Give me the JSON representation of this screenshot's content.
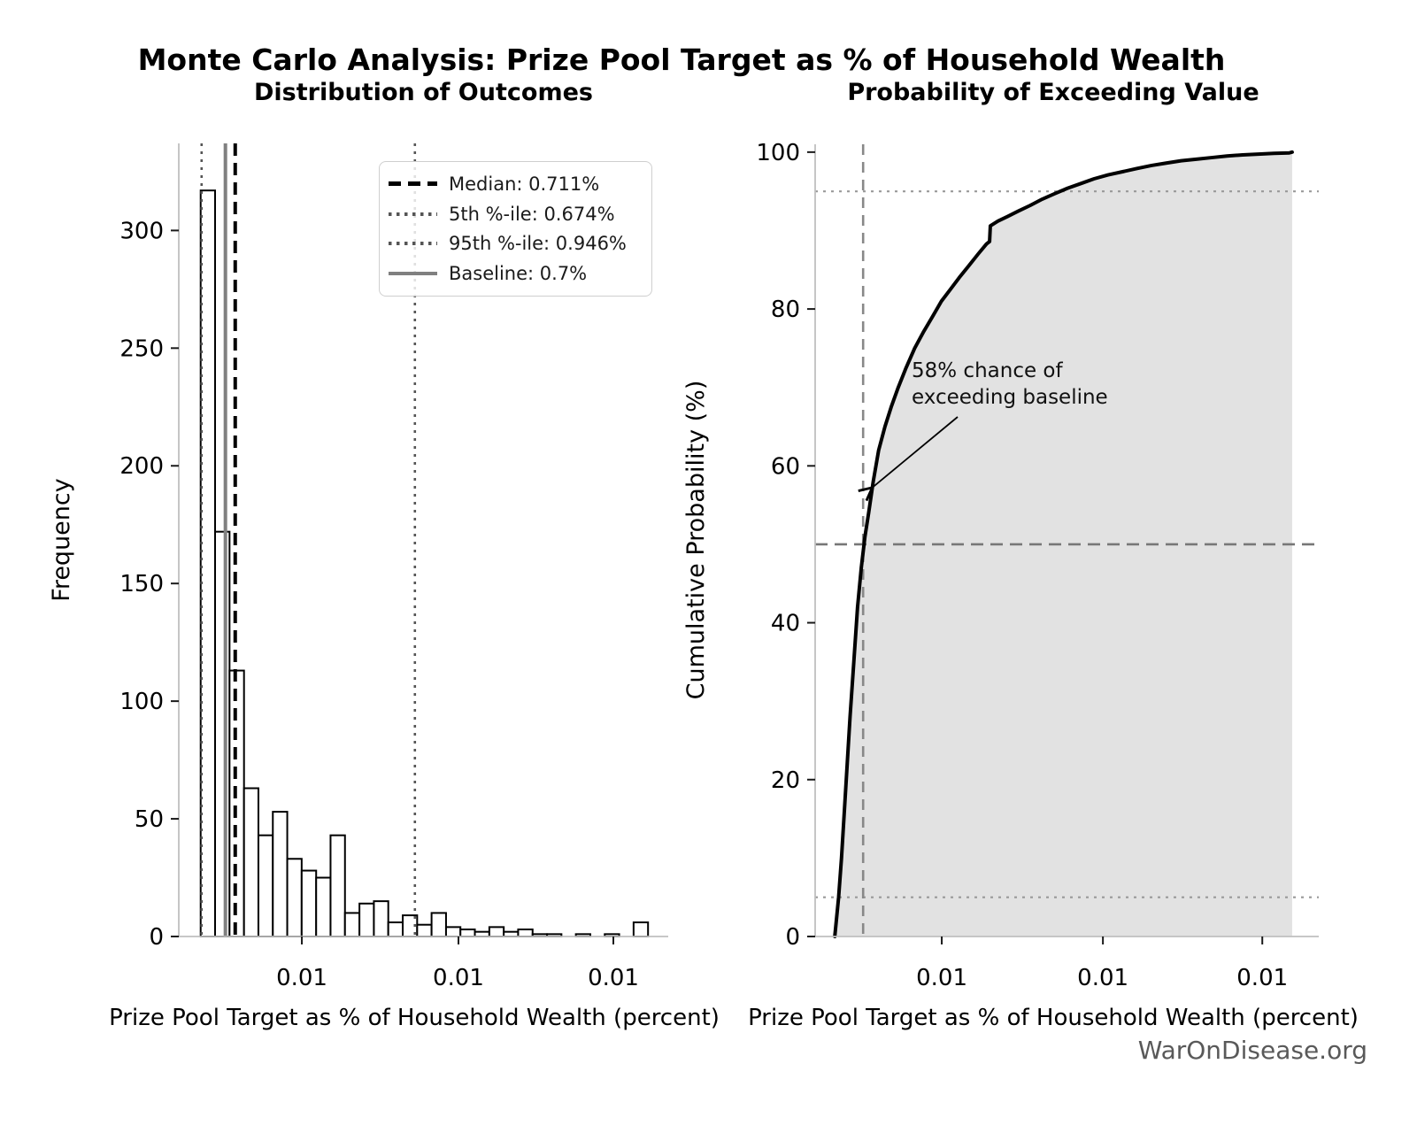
{
  "main_title": "Monte Carlo Analysis: Prize Pool Target as % of Household Wealth",
  "watermark": "WarOnDisease.org",
  "chart_data": [
    {
      "type": "bar",
      "subtype": "histogram",
      "title": "Distribution of Outcomes",
      "xlabel": "Prize Pool Target as % of Household Wealth (percent)",
      "ylabel": "Frequency",
      "xscale": "log",
      "xlim": [
        0.65,
        1.415
      ],
      "ylim": [
        0,
        337
      ],
      "y_ticks": [
        0,
        50,
        100,
        150,
        200,
        250,
        300
      ],
      "x_tick_labels": [
        "0.01",
        "0.01",
        "0.01"
      ],
      "bar_fill": "#ffffff",
      "bar_edge": "#000000",
      "bin_edges": [
        0.673,
        0.6886,
        0.7046,
        0.721,
        0.7377,
        0.7548,
        0.7723,
        0.7902,
        0.8086,
        0.8273,
        0.8465,
        0.8662,
        0.8863,
        0.9068,
        0.9279,
        0.9494,
        0.9714,
        0.994,
        1.017,
        1.0406,
        1.0648,
        1.0895,
        1.1147,
        1.1406,
        1.1671,
        1.1941,
        1.2218,
        1.2502,
        1.2792,
        1.3089,
        1.3392,
        1.3703
      ],
      "counts": [
        317,
        172,
        113,
        63,
        43,
        53,
        33,
        28,
        25,
        43,
        10,
        14,
        15,
        6,
        9,
        5,
        10,
        4,
        3,
        2,
        4,
        2,
        3,
        1,
        1,
        0,
        1,
        0,
        1,
        0,
        6
      ],
      "reference_lines": [
        {
          "label": "Median: 0.711%",
          "value": 0.711,
          "style": "dashed",
          "color": "#000000"
        },
        {
          "label": "5th %-ile: 0.674%",
          "value": 0.674,
          "style": "dotted",
          "color": "#555555"
        },
        {
          "label": "95th %-ile: 0.946%",
          "value": 0.946,
          "style": "dotted",
          "color": "#555555"
        },
        {
          "label": "Baseline: 0.7%",
          "value": 0.7,
          "style": "solid",
          "color": "#808080"
        }
      ]
    },
    {
      "type": "line",
      "subtype": "cdf",
      "title": "Probability of Exceeding Value",
      "xlabel": "Prize Pool Target as % of Household Wealth (percent)",
      "ylabel": "Cumulative Probability (%)",
      "xscale": "log",
      "xlim": [
        0.65,
        1.415
      ],
      "ylim": [
        0,
        101
      ],
      "y_ticks": [
        0,
        20,
        40,
        60,
        80,
        100
      ],
      "x_tick_labels": [
        "0.01",
        "0.01",
        "0.01"
      ],
      "line_color": "#000000",
      "fill_color": "#e2e2e2",
      "cdf_points": [
        [
          0.67,
          0
        ],
        [
          0.674,
          5
        ],
        [
          0.677,
          10
        ],
        [
          0.68,
          16
        ],
        [
          0.683,
          22
        ],
        [
          0.686,
          28
        ],
        [
          0.69,
          35
        ],
        [
          0.694,
          42
        ],
        [
          0.698,
          47
        ],
        [
          0.702,
          51
        ],
        [
          0.706,
          54
        ],
        [
          0.711,
          58
        ],
        [
          0.717,
          62
        ],
        [
          0.724,
          65
        ],
        [
          0.731,
          67.5
        ],
        [
          0.739,
          70
        ],
        [
          0.748,
          72.5
        ],
        [
          0.758,
          75
        ],
        [
          0.768,
          77
        ],
        [
          0.779,
          79
        ],
        [
          0.79,
          81
        ],
        [
          0.801,
          82.5
        ],
        [
          0.812,
          84
        ],
        [
          0.824,
          85.5
        ],
        [
          0.836,
          87
        ],
        [
          0.847,
          88.3
        ],
        [
          0.851,
          88.6
        ],
        [
          0.852,
          90.6
        ],
        [
          0.862,
          91.2
        ],
        [
          0.875,
          91.8
        ],
        [
          0.89,
          92.5
        ],
        [
          0.906,
          93.2
        ],
        [
          0.923,
          94
        ],
        [
          0.941,
          94.7
        ],
        [
          0.96,
          95.4
        ],
        [
          0.98,
          96
        ],
        [
          1.0,
          96.6
        ],
        [
          1.022,
          97.1
        ],
        [
          1.045,
          97.5
        ],
        [
          1.068,
          97.9
        ],
        [
          1.093,
          98.3
        ],
        [
          1.118,
          98.6
        ],
        [
          1.144,
          98.9
        ],
        [
          1.171,
          99.1
        ],
        [
          1.199,
          99.3
        ],
        [
          1.228,
          99.5
        ],
        [
          1.258,
          99.65
        ],
        [
          1.289,
          99.75
        ],
        [
          1.32,
          99.85
        ],
        [
          1.352,
          99.9
        ],
        [
          1.358,
          100
        ]
      ],
      "h_guides": [
        {
          "value": 5,
          "style": "dotted",
          "color": "#999999"
        },
        {
          "value": 50,
          "style": "dashed",
          "color": "#777777"
        },
        {
          "value": 95,
          "style": "dotted",
          "color": "#999999"
        }
      ],
      "v_guides": [
        {
          "value": 0.7,
          "style": "dashed",
          "color": "#888888"
        }
      ],
      "annotation": {
        "lines": [
          "58% chance of",
          "exceeding baseline"
        ],
        "point": [
          0.706,
          57
        ]
      }
    }
  ]
}
